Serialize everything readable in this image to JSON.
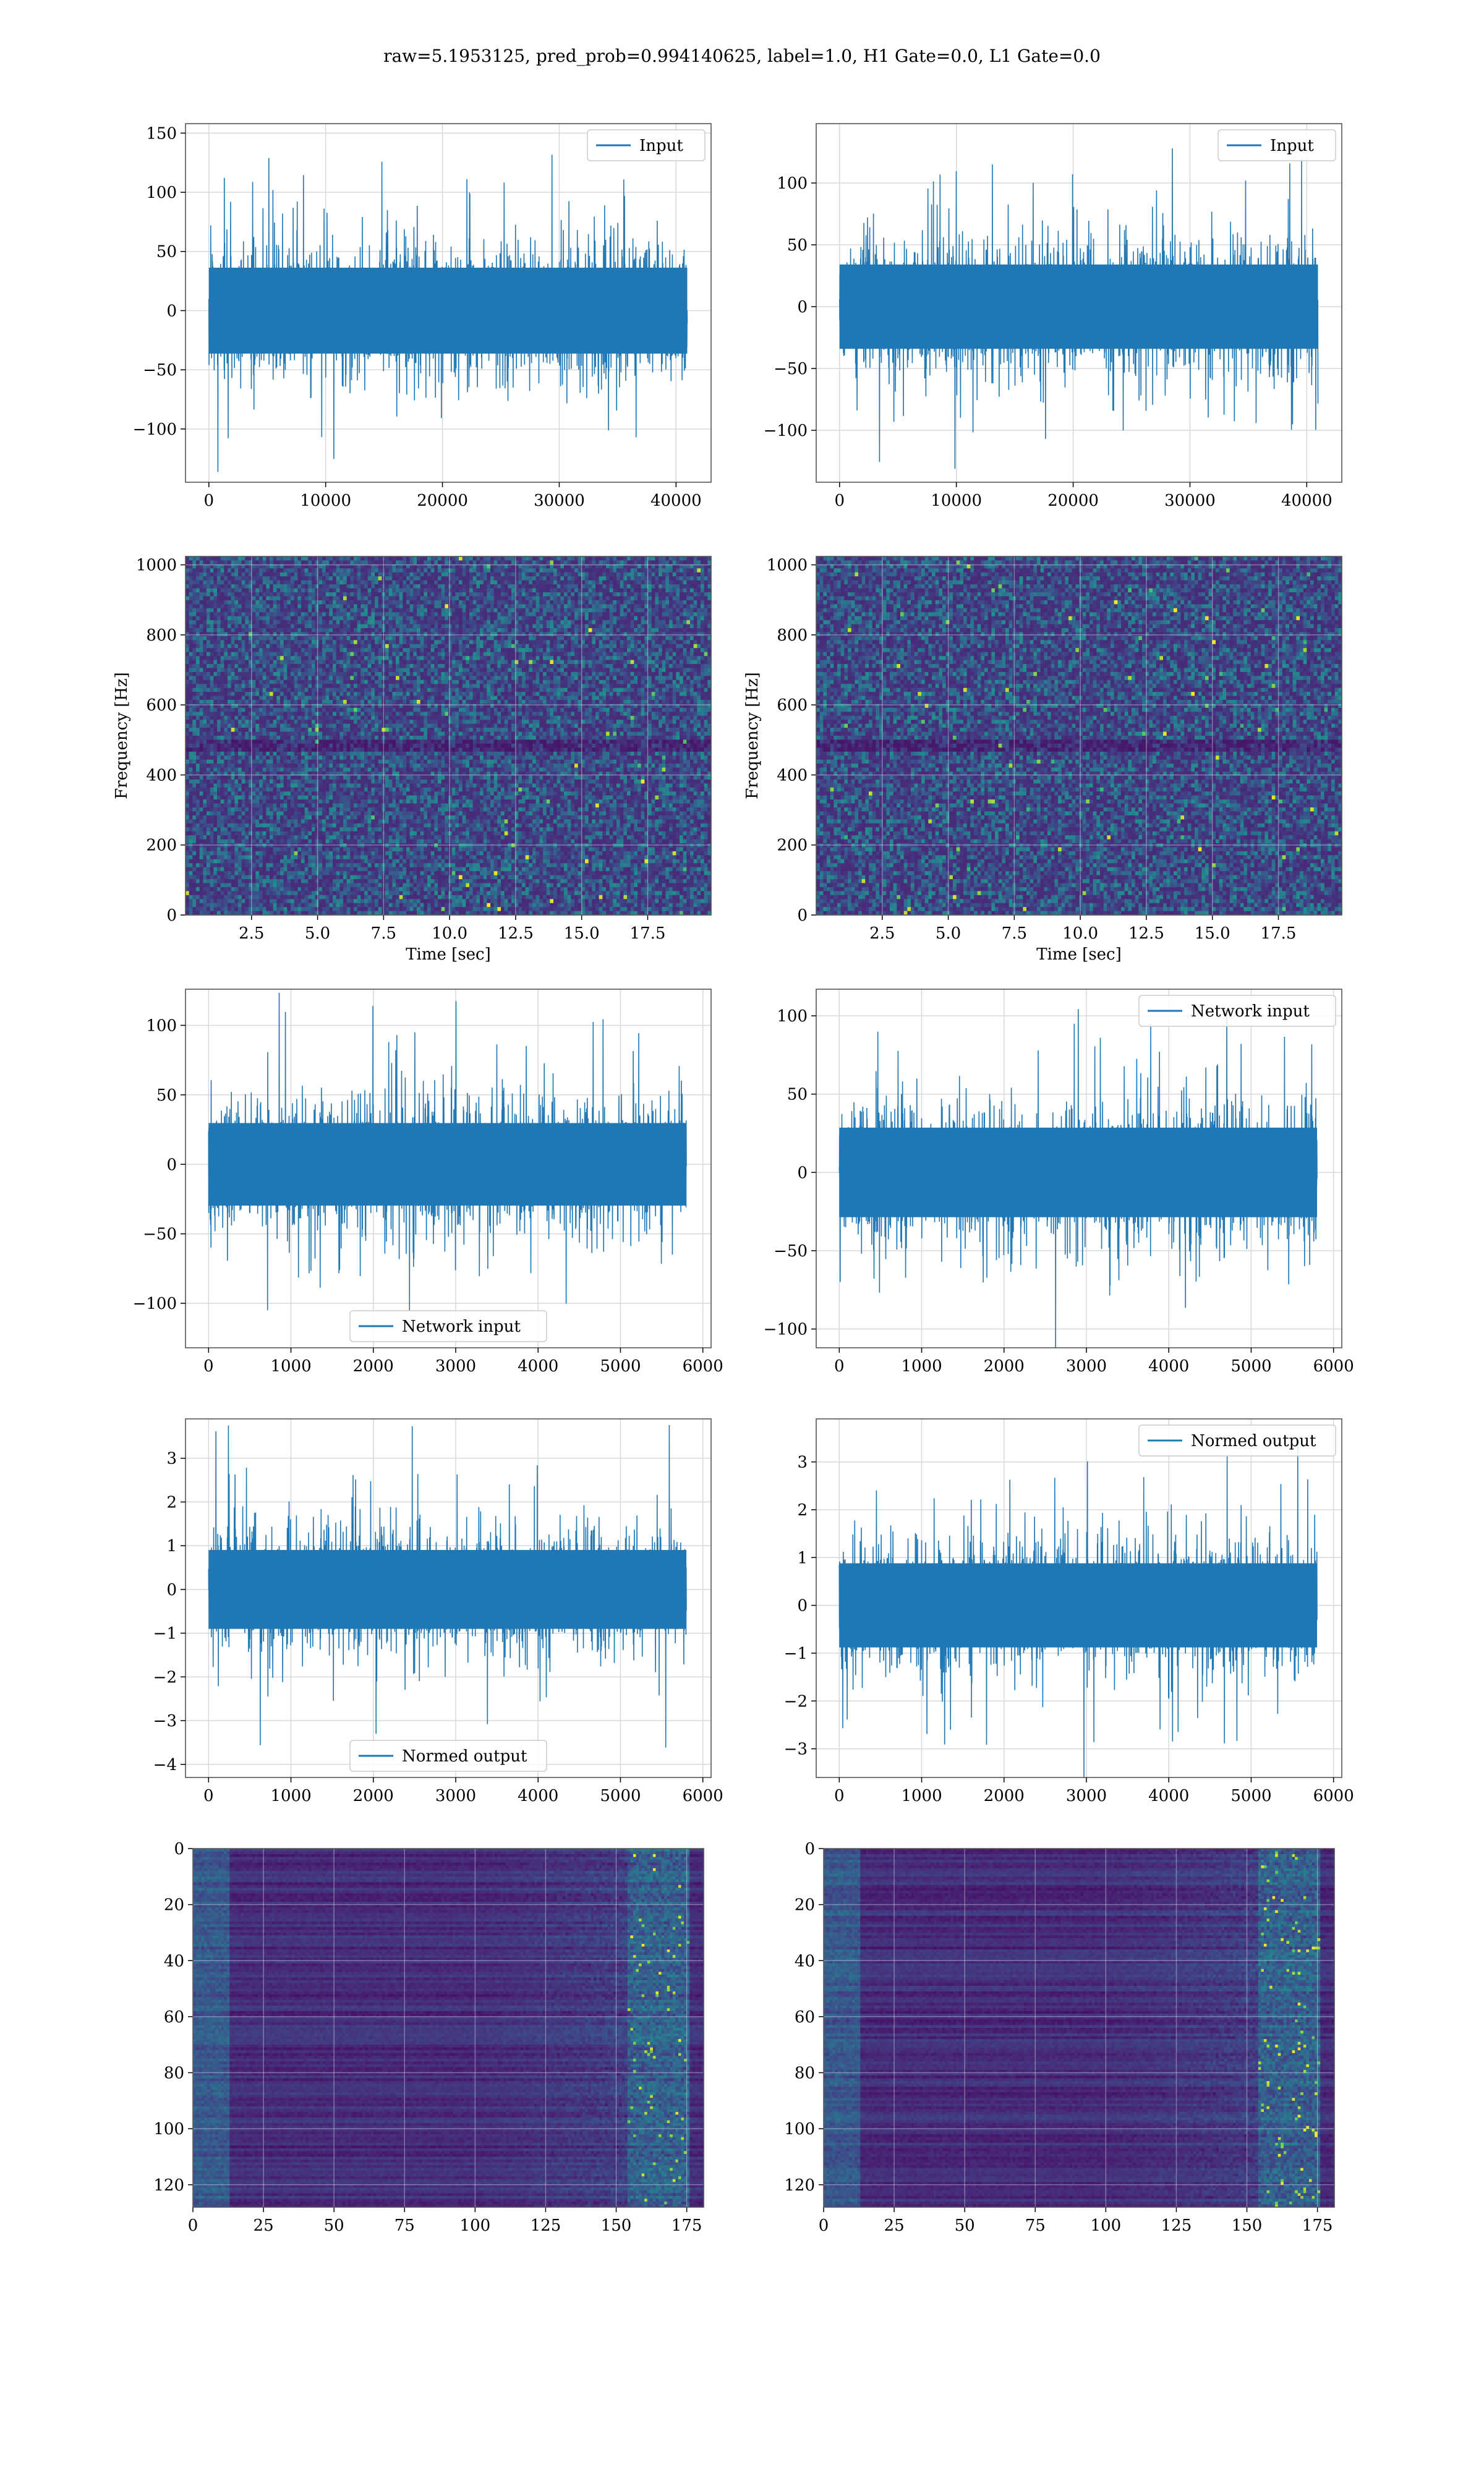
{
  "figure": {
    "title": "raw=5.1953125, pred_prob=0.994140625, label=1.0, H1 Gate=0.0, L1 Gate=0.0"
  },
  "colors": {
    "line": "#1f77b4",
    "viridis_low": "#3b1663",
    "viridis_high": "#fde725",
    "grid": "#d8d8d8"
  },
  "chart_data": [
    {
      "type": "line",
      "id": "h1-input",
      "legend": "Input",
      "legend_loc": "upper right",
      "xlim": [
        -2000,
        43000
      ],
      "ylim": [
        -145,
        158
      ],
      "grid": true,
      "amp": 33,
      "spike": 2.6,
      "x_ticks": [
        0,
        10000,
        20000,
        30000,
        40000
      ],
      "y_ticks": [
        -100,
        -50,
        0,
        50,
        100,
        150
      ],
      "x": [
        0,
        40960
      ],
      "xlabel": "",
      "ylabel": ""
    },
    {
      "type": "line",
      "id": "l1-input",
      "legend": "Input",
      "legend_loc": "upper right",
      "xlim": [
        -2000,
        43000
      ],
      "ylim": [
        -142,
        148
      ],
      "grid": true,
      "amp": 31,
      "spike": 2.6,
      "x_ticks": [
        0,
        10000,
        20000,
        30000,
        40000
      ],
      "y_ticks": [
        -100,
        -50,
        0,
        50,
        100
      ],
      "x": [
        0,
        40960
      ],
      "xlabel": "",
      "ylabel": ""
    },
    {
      "type": "heatmap",
      "id": "h1-spectrogram",
      "xlabel": "Time [sec]",
      "ylabel": "Frequency [Hz]",
      "xlim": [
        0,
        19.9
      ],
      "ylim": [
        0,
        1024
      ],
      "grid": true,
      "x_ticks": [
        "2.5",
        "5.0",
        "7.5",
        "10.0",
        "12.5",
        "15.0",
        "17.5"
      ],
      "y_ticks": [
        "0",
        "200",
        "400",
        "600",
        "800",
        "1000"
      ],
      "x_values": [
        2.5,
        5,
        7.5,
        10,
        12.5,
        15,
        17.5
      ],
      "y_values": [
        0,
        200,
        400,
        600,
        800,
        1000
      ],
      "style": "spectrogram"
    },
    {
      "type": "heatmap",
      "id": "l1-spectrogram",
      "xlabel": "Time [sec]",
      "ylabel": "Frequency [Hz]",
      "xlim": [
        0,
        19.9
      ],
      "ylim": [
        0,
        1024
      ],
      "grid": true,
      "x_ticks": [
        "2.5",
        "5.0",
        "7.5",
        "10.0",
        "12.5",
        "15.0",
        "17.5"
      ],
      "y_ticks": [
        "0",
        "200",
        "400",
        "600",
        "800",
        "1000"
      ],
      "x_values": [
        2.5,
        5,
        7.5,
        10,
        12.5,
        15,
        17.5
      ],
      "y_values": [
        0,
        200,
        400,
        600,
        800,
        1000
      ],
      "style": "spectrogram"
    },
    {
      "type": "line",
      "id": "h1-network-input",
      "legend": "Network input",
      "legend_loc": "lower center",
      "xlim": [
        -280,
        6100
      ],
      "ylim": [
        -132,
        126
      ],
      "grid": true,
      "amp": 27,
      "spike": 2.8,
      "x_ticks": [
        0,
        1000,
        2000,
        3000,
        4000,
        5000,
        6000
      ],
      "y_ticks": [
        -100,
        -50,
        0,
        50,
        100
      ],
      "x": [
        0,
        5800
      ],
      "xlabel": "",
      "ylabel": ""
    },
    {
      "type": "line",
      "id": "l1-network-input",
      "legend": "Network input",
      "legend_loc": "upper right",
      "xlim": [
        -280,
        6100
      ],
      "ylim": [
        -112,
        117
      ],
      "grid": true,
      "amp": 26,
      "spike": 2.8,
      "x_ticks": [
        0,
        1000,
        2000,
        3000,
        4000,
        5000,
        6000
      ],
      "y_ticks": [
        -100,
        -50,
        0,
        50,
        100
      ],
      "x": [
        0,
        5800
      ],
      "xlabel": "",
      "ylabel": ""
    },
    {
      "type": "line",
      "id": "h1-normed-output",
      "legend": "Normed output",
      "legend_loc": "lower center",
      "xlim": [
        -280,
        6100
      ],
      "ylim": [
        -4.3,
        3.9
      ],
      "grid": true,
      "amp": 0.82,
      "spike": 3.0,
      "x_ticks": [
        0,
        1000,
        2000,
        3000,
        4000,
        5000,
        6000
      ],
      "y_ticks": [
        -4,
        -3,
        -2,
        -1,
        0,
        1,
        2,
        3
      ],
      "x": [
        0,
        5800
      ],
      "xlabel": "",
      "ylabel": ""
    },
    {
      "type": "line",
      "id": "l1-normed-output",
      "legend": "Normed output",
      "legend_loc": "upper right",
      "xlim": [
        -280,
        6100
      ],
      "ylim": [
        -3.6,
        3.9
      ],
      "grid": true,
      "amp": 0.8,
      "spike": 3.0,
      "x_ticks": [
        0,
        1000,
        2000,
        3000,
        4000,
        5000,
        6000
      ],
      "y_ticks": [
        -3,
        -2,
        -1,
        0,
        1,
        2,
        3
      ],
      "x": [
        0,
        5800
      ],
      "xlabel": "",
      "ylabel": ""
    },
    {
      "type": "heatmap",
      "id": "h1-feature-map",
      "xlim": [
        0,
        181
      ],
      "ylim": [
        128,
        0
      ],
      "grid": true,
      "x_ticks": [
        "0",
        "25",
        "50",
        "75",
        "100",
        "125",
        "150",
        "175"
      ],
      "y_ticks": [
        "0",
        "20",
        "40",
        "60",
        "80",
        "100",
        "120"
      ],
      "x_values": [
        0,
        25,
        50,
        75,
        100,
        125,
        150,
        175
      ],
      "y_values": [
        0,
        20,
        40,
        60,
        80,
        100,
        120
      ],
      "style": "feature",
      "xlabel": "",
      "ylabel": ""
    },
    {
      "type": "heatmap",
      "id": "l1-feature-map",
      "xlim": [
        0,
        181
      ],
      "ylim": [
        128,
        0
      ],
      "grid": true,
      "x_ticks": [
        "0",
        "25",
        "50",
        "75",
        "100",
        "125",
        "150",
        "175"
      ],
      "y_ticks": [
        "0",
        "20",
        "40",
        "60",
        "80",
        "100",
        "120"
      ],
      "x_values": [
        0,
        25,
        50,
        75,
        100,
        125,
        150,
        175
      ],
      "y_values": [
        0,
        20,
        40,
        60,
        80,
        100,
        120
      ],
      "style": "feature",
      "xlabel": "",
      "ylabel": ""
    }
  ]
}
